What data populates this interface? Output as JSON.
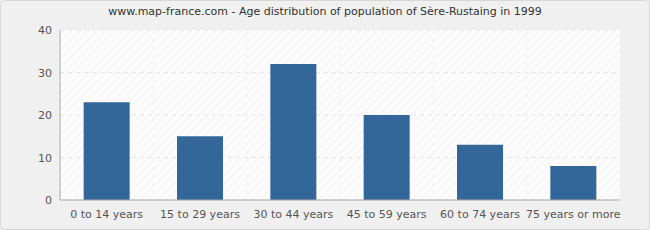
{
  "chart_data": {
    "type": "bar",
    "title": "www.map-france.com - Age distribution of population of Sère-Rustaing in 1999",
    "categories": [
      "0 to 14 years",
      "15 to 29 years",
      "30 to 44 years",
      "45 to 59 years",
      "60 to 74 years",
      "75 years or more"
    ],
    "values": [
      23,
      15,
      32,
      20,
      13,
      8
    ],
    "color": "#336699",
    "ylim": [
      0,
      40
    ],
    "yticks": [
      0,
      10,
      20,
      30,
      40
    ],
    "grid": true
  }
}
